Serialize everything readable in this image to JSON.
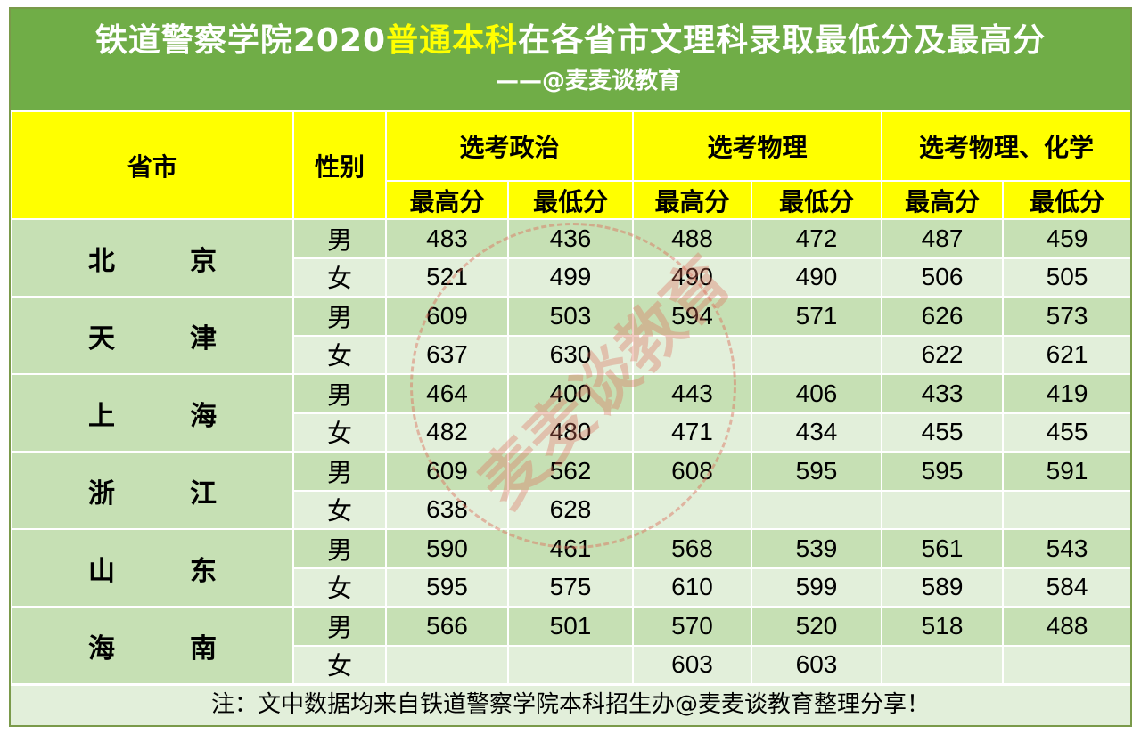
{
  "title": {
    "part1": "铁道警察学院2020",
    "highlight": "普通本科",
    "part2": "在各省市文理科录取最低分及最高分",
    "subtitle": "——@麦麦谈教育"
  },
  "header": {
    "province": "省市",
    "gender": "性别",
    "groups": [
      "选考政治",
      "选考物理",
      "选考物理、化学"
    ],
    "subcols": [
      "最高分",
      "最低分",
      "最高分",
      "最低分",
      "最高分",
      "最低分"
    ]
  },
  "rows": [
    {
      "province": "北京",
      "male": [
        "483",
        "436",
        "488",
        "472",
        "487",
        "459"
      ],
      "female": [
        "521",
        "499",
        "490",
        "490",
        "506",
        "505"
      ]
    },
    {
      "province": "天津",
      "male": [
        "609",
        "503",
        "594",
        "571",
        "626",
        "573"
      ],
      "female": [
        "637",
        "630",
        "",
        "",
        "622",
        "621"
      ]
    },
    {
      "province": "上海",
      "male": [
        "464",
        "400",
        "443",
        "406",
        "433",
        "419"
      ],
      "female": [
        "482",
        "480",
        "471",
        "434",
        "455",
        "455"
      ]
    },
    {
      "province": "浙江",
      "male": [
        "609",
        "562",
        "608",
        "595",
        "595",
        "591"
      ],
      "female": [
        "638",
        "628",
        "",
        "",
        "",
        ""
      ]
    },
    {
      "province": "山东",
      "male": [
        "590",
        "461",
        "568",
        "539",
        "561",
        "543"
      ],
      "female": [
        "595",
        "575",
        "610",
        "599",
        "589",
        "584"
      ]
    },
    {
      "province": "海南",
      "male": [
        "566",
        "501",
        "570",
        "520",
        "518",
        "488"
      ],
      "female": [
        "",
        "",
        "603",
        "603",
        "",
        ""
      ]
    }
  ],
  "gender_labels": {
    "male": "男",
    "female": "女"
  },
  "footer": "注：文中数据均来自铁道警察学院本科招生办@麦麦谈教育整理分享！",
  "watermark": "麦麦谈教育",
  "colors": {
    "title_bg": "#70ad47",
    "header_bg": "#ffff00",
    "row_dark": "#c6e0b4",
    "row_light": "#e2efda",
    "highlight_text": "#ffff00"
  }
}
